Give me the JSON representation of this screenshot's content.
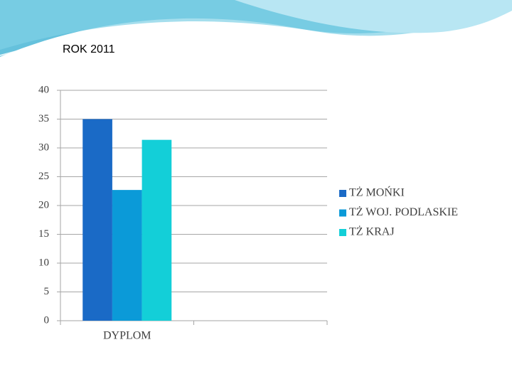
{
  "chart_data": {
    "type": "bar",
    "title": "ROK 2011",
    "categories": [
      "DYPLOM",
      null
    ],
    "series": [
      {
        "name": "TŻ MOŃKI",
        "color": "#1a6ac6",
        "values": [
          35,
          null
        ]
      },
      {
        "name": "TŻ WOJ. PODLASKIE",
        "color": "#0b9ad8",
        "values": [
          22.7,
          null
        ]
      },
      {
        "name": "TŻ KRAJ",
        "color": "#13cfd8",
        "values": [
          31.4,
          null
        ]
      }
    ],
    "ylim": [
      0,
      40
    ],
    "yticks": [
      0,
      5,
      10,
      15,
      20,
      25,
      30,
      35,
      40
    ],
    "grid": true,
    "legend": "right"
  }
}
